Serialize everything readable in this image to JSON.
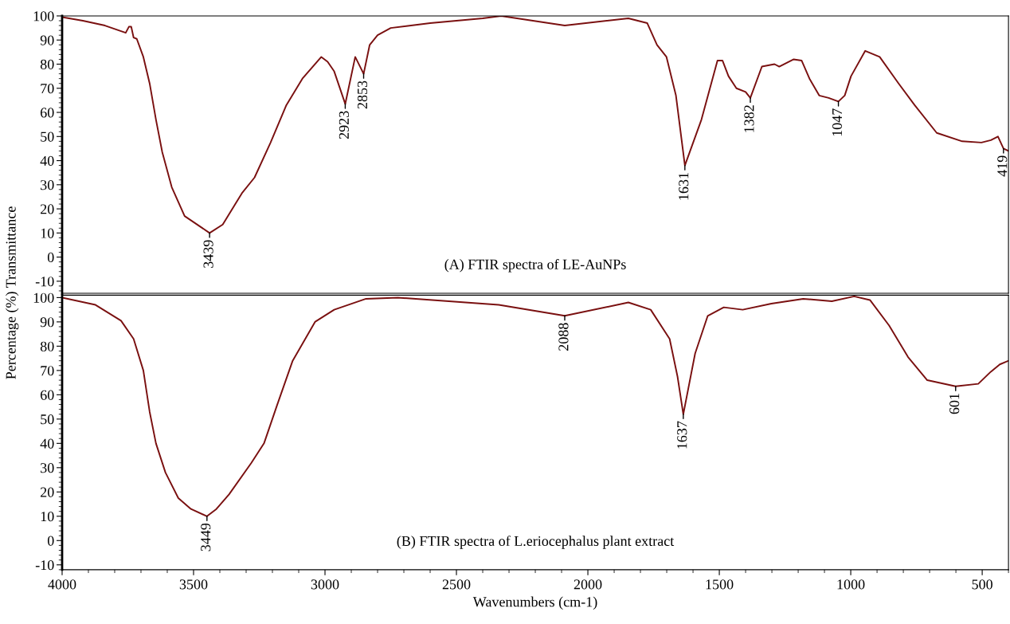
{
  "chart_data": [
    {
      "type": "line",
      "ylabel": "Percentage (%) Transmittance",
      "xlim": [
        4000,
        400
      ],
      "ylim": [
        -15,
        100
      ],
      "yticks": [
        -10,
        0,
        10,
        20,
        30,
        40,
        50,
        60,
        70,
        80,
        90,
        100
      ],
      "tick_labels": "y",
      "series": [
        {
          "color": "#7a1010",
          "x": [
            4000,
            3921,
            3837,
            3758,
            3746,
            3737,
            3728,
            3716,
            3691,
            3667,
            3643,
            3619,
            3583,
            3534,
            3439,
            3389,
            3316,
            3268,
            3207,
            3147,
            3086,
            3014,
            2990,
            2965,
            2923,
            2885,
            2853,
            2830,
            2800,
            2750,
            2600,
            2400,
            2330,
            2088,
            1846,
            1774,
            1737,
            1701,
            1665,
            1631,
            1568,
            1507,
            1488,
            1465,
            1435,
            1400,
            1382,
            1338,
            1290,
            1272,
            1217,
            1187,
            1157,
            1120,
            1084,
            1047,
            1023,
            999,
            945,
            890,
            818,
            757,
            673,
            576,
            503,
            467,
            440,
            419,
            400
          ],
          "values": [
            99.5,
            98,
            96,
            93,
            95.5,
            95.5,
            91,
            90.5,
            83,
            72,
            57,
            43.5,
            29,
            17,
            10,
            13.5,
            26.5,
            33,
            47.5,
            63,
            74,
            83,
            81,
            77,
            63.5,
            83,
            76,
            88,
            92,
            95,
            97,
            99,
            100,
            96,
            99,
            97,
            88,
            83,
            67,
            38,
            57,
            81.5,
            81.5,
            75,
            70,
            68.5,
            66,
            79,
            80,
            79,
            82,
            81.5,
            74,
            67,
            66,
            64.5,
            67,
            75,
            85.5,
            83,
            72,
            63,
            51.5,
            48,
            47.5,
            48.5,
            50,
            45,
            44
          ]
        }
      ],
      "annotations": [
        {
          "text": "3439",
          "x": 3439,
          "y": 10
        },
        {
          "text": "2923",
          "x": 2923,
          "y": 63.5
        },
        {
          "text": "2853",
          "x": 2853,
          "y": 76
        },
        {
          "text": "1631",
          "x": 1631,
          "y": 38
        },
        {
          "text": "1382",
          "x": 1382,
          "y": 66
        },
        {
          "text": "1047",
          "x": 1047,
          "y": 64.5
        },
        {
          "text": "419",
          "x": 419,
          "y": 45
        },
        "(A) FTIR spectra of LE-AuNPs"
      ]
    },
    {
      "type": "line",
      "xlabel": "Wavenumbers (cm-1)",
      "xlim": [
        4000,
        400
      ],
      "xticks": [
        4000,
        3500,
        3000,
        2500,
        2000,
        1500,
        1000,
        500
      ],
      "ylim": [
        -12,
        101
      ],
      "yticks": [
        -10,
        0,
        10,
        20,
        30,
        40,
        50,
        60,
        70,
        80,
        90,
        100
      ],
      "series": [
        {
          "color": "#7a1010",
          "x": [
            4000,
            3873,
            3776,
            3728,
            3691,
            3667,
            3643,
            3607,
            3558,
            3510,
            3449,
            3413,
            3365,
            3280,
            3232,
            3183,
            3123,
            3038,
            2965,
            2844,
            2723,
            2339,
            2088,
            1846,
            1761,
            1689,
            1659,
            1637,
            1592,
            1544,
            1483,
            1411,
            1302,
            1181,
            1072,
            987,
            927,
            854,
            782,
            709,
            601,
            515,
            467,
            433,
            400
          ],
          "values": [
            100,
            97,
            90.5,
            83,
            70,
            53,
            40,
            28,
            17.5,
            13,
            10,
            13,
            19,
            32,
            40,
            55.5,
            74,
            90,
            95,
            99.5,
            100,
            97,
            92.5,
            98,
            95,
            83,
            67.5,
            52,
            77,
            92.5,
            96,
            95,
            97.5,
            99.5,
            98.5,
            100.5,
            99,
            88.5,
            75.5,
            66,
            63.5,
            64.5,
            69.5,
            72.5,
            74
          ]
        }
      ],
      "annotations": [
        {
          "text": "3449",
          "x": 3449,
          "y": 10
        },
        {
          "text": "2088",
          "x": 2088,
          "y": 92.5
        },
        {
          "text": "1637",
          "x": 1637,
          "y": 52
        },
        {
          "text": "601",
          "x": 601,
          "y": 63.5
        },
        "(B) FTIR spectra of L.eriocephalus plant extract"
      ]
    }
  ]
}
